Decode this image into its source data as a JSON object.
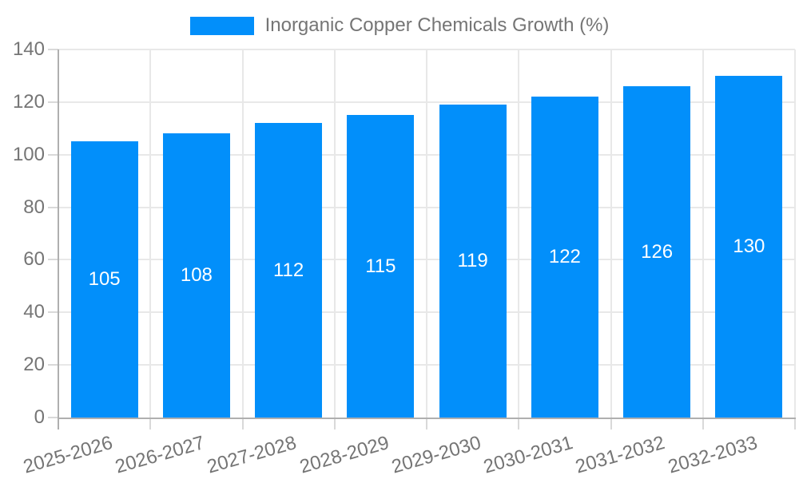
{
  "chart_data": {
    "type": "bar",
    "title": "Inorganic Copper Chemicals Growth (%)",
    "categories": [
      "2025-2026",
      "2026-2027",
      "2027-2028",
      "2028-2029",
      "2029-2030",
      "2030-2031",
      "2031-2032",
      "2032-2033"
    ],
    "values": [
      105,
      108,
      112,
      115,
      119,
      122,
      126,
      130
    ],
    "xlabel": "",
    "ylabel": "",
    "ylim": [
      0,
      140
    ],
    "ytick_step": 20,
    "grid": true,
    "legend_position": "top-center",
    "x_label_rotation_deg": -16,
    "colors": {
      "bar": "#028FFA",
      "bar_value_label": "#FFFFFF",
      "axis_text": "#757575",
      "legend_text": "#757575",
      "gridline": "#E8E8E8",
      "tick": "#D9D9D9",
      "axis_line": "#AFAFAF",
      "background": "#FFFFFF"
    }
  }
}
